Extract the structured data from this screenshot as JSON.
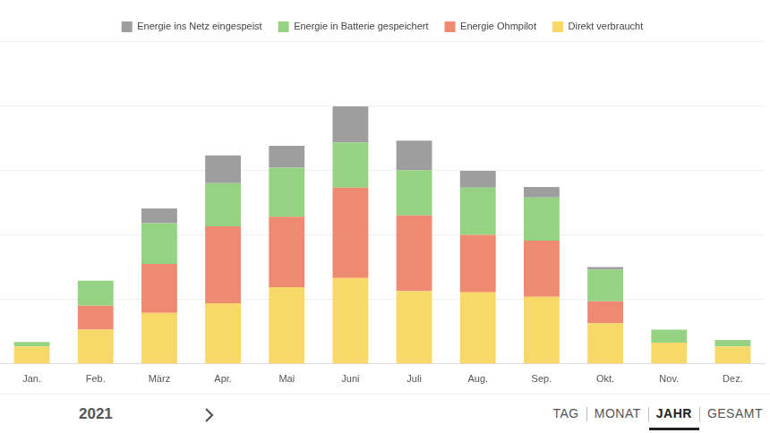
{
  "chart_data": {
    "type": "bar",
    "stacked": true,
    "legend": "top",
    "grid": true,
    "tick_labels": "x",
    "categories": [
      "Jan.",
      "Feb.",
      "März",
      "Apr.",
      "Mai",
      "Juni",
      "Juli",
      "Aug.",
      "Sep.",
      "Okt.",
      "Nov.",
      "Dez."
    ],
    "series": [
      {
        "name": "Energie ins Netz eingespeist",
        "color": "#9e9e9e",
        "values": [
          0,
          0,
          0.23,
          0.43,
          0.34,
          0.56,
          0.46,
          0.26,
          0.16,
          0.04,
          0,
          0
        ]
      },
      {
        "name": "Energie in Batterie gespeichert",
        "color": "#95d383",
        "values": [
          0.07,
          0.39,
          0.63,
          0.67,
          0.76,
          0.7,
          0.7,
          0.73,
          0.67,
          0.49,
          0.2,
          0.1
        ]
      },
      {
        "name": "Energie Ohmpilot",
        "color": "#ee8a72",
        "values": [
          0,
          0.37,
          0.76,
          1.19,
          1.09,
          1.4,
          1.17,
          0.89,
          0.87,
          0.34,
          0,
          0
        ]
      },
      {
        "name": "Direkt verbraucht",
        "color": "#f9d86a",
        "values": [
          0.27,
          0.53,
          0.79,
          0.94,
          1.19,
          1.33,
          1.13,
          1.11,
          1.04,
          0.63,
          0.33,
          0.27
        ]
      }
    ],
    "ylim": [
      0,
      5
    ],
    "yticks": [
      0,
      1,
      2,
      3,
      4,
      5
    ]
  },
  "controls": {
    "year": "2021",
    "views": [
      "TAG",
      "MONAT",
      "JAHR",
      "GESAMT"
    ],
    "active_view": "JAHR"
  }
}
